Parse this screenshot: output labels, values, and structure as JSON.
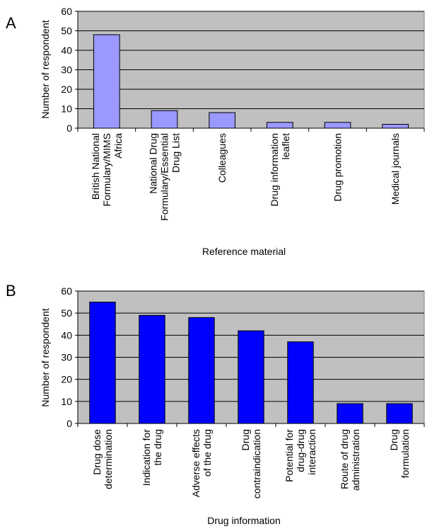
{
  "chart_data": [
    {
      "panel_label": "A",
      "type": "bar",
      "xlabel": "Reference material",
      "ylabel": "Number of respondent",
      "ylim": [
        0,
        60
      ],
      "yticks": [
        0,
        10,
        20,
        30,
        40,
        50,
        60
      ],
      "grid": true,
      "categories": [
        "British National Formulary/MIMS Africa",
        "National Drug Formulary/Essential Drug List",
        "Colleagues",
        "Drug information leaflet",
        "Drug promotion",
        "Medical journals"
      ],
      "category_lines": [
        [
          "British National",
          "Formulary/MIMS",
          "Africa"
        ],
        [
          "National Drug",
          "Formulary/Essential",
          "Drug List"
        ],
        [
          "Colleagues"
        ],
        [
          "Drug information",
          "leaflet"
        ],
        [
          "Drug promotion"
        ],
        [
          "Medical journals"
        ]
      ],
      "values": [
        48,
        9,
        8,
        3,
        3,
        2
      ],
      "colors": {
        "bar": "#9999ff",
        "plot_bg": "#c0c0c0"
      }
    },
    {
      "panel_label": "B",
      "type": "bar",
      "xlabel": "Drug information",
      "ylabel": "Number of respondent",
      "ylim": [
        0,
        60
      ],
      "yticks": [
        0,
        10,
        20,
        30,
        40,
        50,
        60
      ],
      "grid": true,
      "categories": [
        "Drug dose determination",
        "Indication for the drug",
        "Adverse effects of the drug",
        "Drug contraindication",
        "Potential for drug-drug interaction",
        "Route of drug administration",
        "Drug formulation"
      ],
      "category_lines": [
        [
          "Drug dose",
          "determination"
        ],
        [
          "Indication for",
          "the drug"
        ],
        [
          "Adverse effects",
          "of the drug"
        ],
        [
          "Drug",
          "contraindication"
        ],
        [
          "Potential for",
          "drug-drug",
          "interaction"
        ],
        [
          "Route of drug",
          "administration"
        ],
        [
          "Drug",
          "formulation"
        ]
      ],
      "values": [
        55,
        49,
        48,
        42,
        37,
        9,
        9
      ],
      "colors": {
        "bar": "#0000ff",
        "plot_bg": "#c0c0c0"
      }
    }
  ]
}
